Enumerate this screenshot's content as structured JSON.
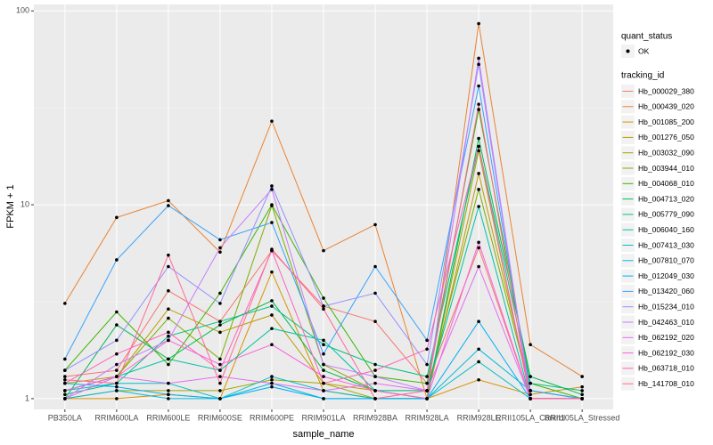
{
  "chart_data": {
    "type": "line",
    "x_label": "sample_name",
    "y_label": "FPKM + 1",
    "log_y": true,
    "grid": true,
    "ylim": [
      0.88,
      108
    ],
    "yticks": [
      1,
      10,
      100
    ],
    "categories": [
      "PB350LA",
      "RRIM600LA",
      "RRIM600LE",
      "RRIM600SE",
      "RRIM600PE",
      "RRIM901LA",
      "RRIM928BA",
      "RRIM928LA",
      "RRIM928LE",
      "RRII105LA_Control",
      "RRII105LA_Stressed"
    ],
    "legend_position": "right",
    "legend_point_title": "quant_status",
    "legend_point_label": "OK",
    "legend_title": "tracking_id",
    "series": [
      {
        "name": "Hb_000029_380",
        "color": "#F8766D",
        "values": [
          1.3,
          1.4,
          3.6,
          2.5,
          5.8,
          3.0,
          2.5,
          1.2,
          6.0,
          1.0,
          1.0
        ]
      },
      {
        "name": "Hb_000439_020",
        "color": "#EA8331",
        "values": [
          3.1,
          8.6,
          10.5,
          5.7,
          27,
          5.8,
          7.9,
          1.0,
          86,
          1.9,
          1.3
        ]
      },
      {
        "name": "Hb_001085_200",
        "color": "#D89000",
        "values": [
          1.0,
          1.0,
          1.05,
          1.0,
          4.5,
          1.1,
          1.0,
          1.0,
          1.25,
          1.05,
          1.15
        ]
      },
      {
        "name": "Hb_001276_050",
        "color": "#C09B00",
        "values": [
          1.2,
          1.3,
          2.9,
          2.2,
          2.7,
          1.2,
          1.1,
          1.0,
          14.5,
          1.1,
          1.0
        ]
      },
      {
        "name": "Hb_003032_090",
        "color": "#A3A500",
        "values": [
          1.0,
          1.1,
          1.1,
          1.1,
          1.25,
          1.2,
          1.0,
          1.0,
          19,
          1.0,
          1.0
        ]
      },
      {
        "name": "Hb_003944_010",
        "color": "#7CAE00",
        "values": [
          1.1,
          1.3,
          2.6,
          1.6,
          9.9,
          1.5,
          1.1,
          1.1,
          12,
          1.1,
          1.0
        ]
      },
      {
        "name": "Hb_004068_010",
        "color": "#39B600",
        "values": [
          1.4,
          2.8,
          1.5,
          3.5,
          10,
          3.3,
          1.3,
          1.2,
          31,
          1.2,
          1.0
        ]
      },
      {
        "name": "Hb_004713_020",
        "color": "#00BB4E",
        "values": [
          1.0,
          2.4,
          1.6,
          2.4,
          3.2,
          1.4,
          1.1,
          1.0,
          22,
          1.3,
          1.05
        ]
      },
      {
        "name": "Hb_005779_090",
        "color": "#00BF7D",
        "values": [
          1.05,
          1.2,
          2.1,
          2.5,
          3.0,
          1.9,
          1.5,
          1.3,
          20,
          1.2,
          1.1
        ]
      },
      {
        "name": "Hb_006040_160",
        "color": "#00C1A3",
        "values": [
          1.1,
          1.3,
          1.6,
          1.4,
          2.3,
          2.0,
          1.1,
          1.1,
          9.8,
          1.0,
          1.0
        ]
      },
      {
        "name": "Hb_007413_030",
        "color": "#00BFC4",
        "values": [
          1.1,
          1.2,
          1.2,
          1.0,
          1.3,
          1.1,
          1.0,
          1.0,
          1.55,
          1.0,
          1.0
        ]
      },
      {
        "name": "Hb_007810_070",
        "color": "#00BAE0",
        "values": [
          1.0,
          1.1,
          1.0,
          1.0,
          1.2,
          1.0,
          1.0,
          1.0,
          1.8,
          1.1,
          1.0
        ]
      },
      {
        "name": "Hb_012049_030",
        "color": "#00B0F6",
        "values": [
          1.2,
          1.15,
          1.05,
          1.0,
          1.15,
          1.0,
          1.0,
          1.0,
          2.5,
          1.0,
          1.0
        ]
      },
      {
        "name": "Hb_013420_060",
        "color": "#35A2FF",
        "values": [
          1.6,
          5.2,
          9.9,
          6.6,
          8.1,
          1.7,
          4.8,
          2.0,
          41,
          1.1,
          1.0
        ]
      },
      {
        "name": "Hb_015234_010",
        "color": "#9590FF",
        "values": [
          1.4,
          2.0,
          4.8,
          3.1,
          12.5,
          3.0,
          3.5,
          1.5,
          53,
          1.0,
          1.0
        ]
      },
      {
        "name": "Hb_042463_010",
        "color": "#C77CFF",
        "values": [
          1.0,
          1.5,
          2.0,
          6.0,
          12,
          1.5,
          1.3,
          1.1,
          57,
          1.0,
          1.0
        ]
      },
      {
        "name": "Hb_062192_020",
        "color": "#E76BF3",
        "values": [
          1.0,
          1.3,
          1.2,
          1.3,
          1.2,
          1.1,
          1.2,
          1.1,
          4.8,
          1.0,
          1.0
        ]
      },
      {
        "name": "Hb_062192_030",
        "color": "#FA62DB",
        "values": [
          1.1,
          1.3,
          2.0,
          1.5,
          1.9,
          1.3,
          1.1,
          1.0,
          6.4,
          1.0,
          1.0
        ]
      },
      {
        "name": "Hb_063718_010",
        "color": "#FF62BC",
        "values": [
          1.2,
          1.7,
          2.2,
          1.4,
          5.8,
          1.2,
          1.4,
          1.8,
          20,
          1.0,
          1.0
        ]
      },
      {
        "name": "Hb_141708_010",
        "color": "#FF6A98",
        "values": [
          1.25,
          1.2,
          5.5,
          1.2,
          5.9,
          2.9,
          1.0,
          1.1,
          33,
          1.0,
          1.0
        ]
      }
    ]
  }
}
